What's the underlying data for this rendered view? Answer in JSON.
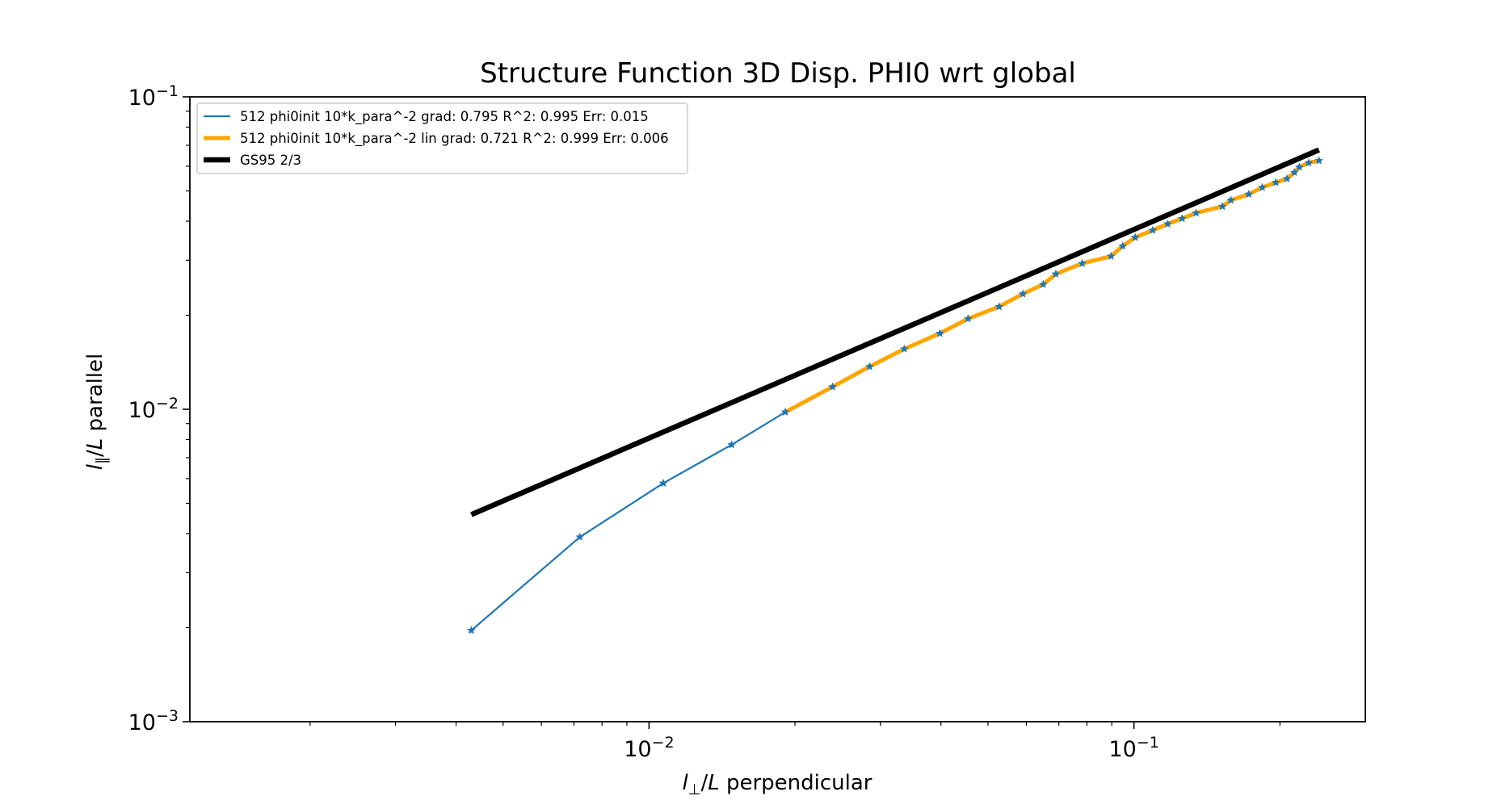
{
  "chart_data": {
    "type": "line",
    "title": "Structure Function 3D Disp. PHI0 wrt global",
    "xlabel": {
      "italic": "l",
      "sub": "⊥",
      "mid": "/",
      "italic2": "L",
      "rest": " perpendicular"
    },
    "ylabel": {
      "italic": "l",
      "sub": "∥",
      "mid": "/",
      "italic2": "L",
      "rest": " parallel"
    },
    "xscale": "log",
    "yscale": "log",
    "xlim": [
      0.00113,
      0.3
    ],
    "ylim": [
      0.001,
      0.1
    ],
    "x_ticks": [
      {
        "value": 0.01,
        "base": "10",
        "exp": "−2"
      },
      {
        "value": 0.1,
        "base": "10",
        "exp": "−1"
      }
    ],
    "y_ticks": [
      {
        "value": 0.001,
        "base": "10",
        "exp": "−3"
      },
      {
        "value": 0.01,
        "base": "10",
        "exp": "−2"
      },
      {
        "value": 0.1,
        "base": "10",
        "exp": "−1"
      }
    ],
    "grid": false,
    "legend_position": "top-left",
    "series": [
      {
        "name": "512 phi0init 10*k_para^-2 grad: 0.795 R^2: 0.995  Err: 0.015",
        "color": "#1f77b4",
        "style": "thin-line-star-markers",
        "x": [
          0.0043,
          0.0072,
          0.0107,
          0.0148,
          0.0191,
          0.0239,
          0.0285,
          0.0336,
          0.0398,
          0.0455,
          0.0527,
          0.059,
          0.065,
          0.069,
          0.0782,
          0.0897,
          0.0948,
          0.1006,
          0.1093,
          0.1174,
          0.1257,
          0.1343,
          0.1522,
          0.1585,
          0.1725,
          0.1839,
          0.1961,
          0.2068,
          0.2142,
          0.2193,
          0.2293,
          0.2408
        ],
        "y": [
          0.00196,
          0.0039,
          0.0058,
          0.0077,
          0.0098,
          0.0118,
          0.0137,
          0.0156,
          0.0175,
          0.0195,
          0.0213,
          0.0234,
          0.0251,
          0.0271,
          0.0293,
          0.0309,
          0.0333,
          0.0355,
          0.0374,
          0.0392,
          0.0408,
          0.0425,
          0.0446,
          0.0467,
          0.0488,
          0.0513,
          0.0532,
          0.0547,
          0.0573,
          0.0596,
          0.0615,
          0.0625
        ]
      },
      {
        "name": "512 phi0init 10*k_para^-2 lin grad: 0.721 R^2: 0.999  Err: 0.006",
        "color": "#ffa500",
        "style": "thick-line",
        "x": [
          0.0191,
          0.0239,
          0.0285,
          0.0336,
          0.0398,
          0.0455,
          0.0527,
          0.059,
          0.065,
          0.069,
          0.0782,
          0.0897,
          0.0948,
          0.1006,
          0.1093,
          0.1174,
          0.1257,
          0.1343,
          0.1522,
          0.1585,
          0.1725,
          0.1839,
          0.1961,
          0.2068,
          0.2142,
          0.2193,
          0.2293,
          0.2408
        ],
        "y": [
          0.0098,
          0.0118,
          0.0137,
          0.0156,
          0.0175,
          0.0195,
          0.0213,
          0.0234,
          0.0251,
          0.0271,
          0.0293,
          0.0309,
          0.0333,
          0.0355,
          0.0374,
          0.0392,
          0.0408,
          0.0425,
          0.0446,
          0.0467,
          0.0488,
          0.0513,
          0.0532,
          0.0547,
          0.0573,
          0.0596,
          0.0615,
          0.0625
        ]
      },
      {
        "name": "GS95 2/3",
        "color": "#000000",
        "style": "thick-line",
        "x": [
          0.0043,
          0.2408
        ],
        "y": [
          0.0046,
          0.0677
        ]
      }
    ]
  }
}
